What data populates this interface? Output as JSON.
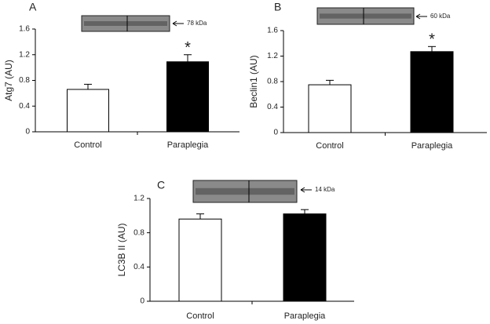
{
  "chart_data": [
    {
      "type": "bar",
      "panel": "A",
      "blot_label": "78 kDa",
      "y_label": "Atg7 (AU)",
      "categories": [
        "Control",
        "Paraplegia"
      ],
      "values": [
        0.66,
        1.09
      ],
      "errors": [
        0.08,
        0.11
      ],
      "colors": [
        "#ffffff",
        "#000000"
      ],
      "significance": [
        null,
        "*"
      ],
      "ylim": [
        0,
        1.6
      ],
      "yticks": [
        0,
        0.4,
        0.8,
        1.2,
        1.6
      ]
    },
    {
      "type": "bar",
      "panel": "B",
      "blot_label": "60 kDa",
      "y_label": "Beclin1 (AU)",
      "categories": [
        "Control",
        "Paraplegia"
      ],
      "values": [
        0.75,
        1.27
      ],
      "errors": [
        0.07,
        0.08
      ],
      "colors": [
        "#ffffff",
        "#000000"
      ],
      "significance": [
        null,
        "*"
      ],
      "ylim": [
        0,
        1.6
      ],
      "yticks": [
        0,
        0.4,
        0.8,
        1.2,
        1.6
      ]
    },
    {
      "type": "bar",
      "panel": "C",
      "blot_label": "14 kDa",
      "y_label": "LC3B II (AU)",
      "categories": [
        "Control",
        "Paraplegia"
      ],
      "values": [
        0.96,
        1.02
      ],
      "errors": [
        0.06,
        0.05
      ],
      "colors": [
        "#ffffff",
        "#000000"
      ],
      "significance": [
        null,
        null
      ],
      "ylim": [
        0,
        1.2
      ],
      "yticks": [
        0,
        0.4,
        0.8,
        1.2
      ]
    }
  ]
}
